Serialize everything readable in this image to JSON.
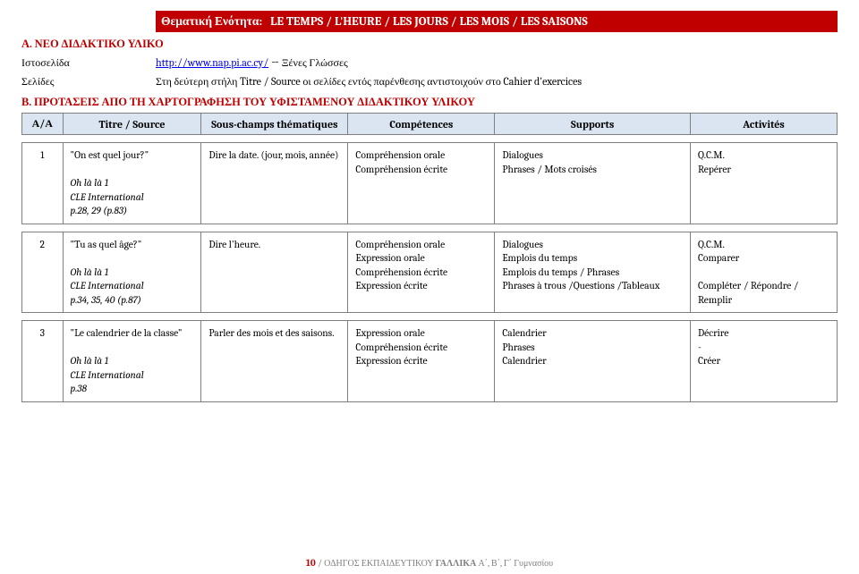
{
  "header": {
    "thematic_label": "Θεματική Ενότητα:",
    "thematic_value": "LE TEMPS / L'HEURE / LES JOURS / LES MOIS / LES SAISONS"
  },
  "sectionA": {
    "title": "Α. ΝΕΟ ΔΙΔΑΚΤΙΚΟ ΥΛΙΚΟ",
    "website_label": "Ιστοσελίδα",
    "website_url": "http://www.nap.pi.ac.cy/",
    "website_suffix": " → Ξένες Γλώσσες",
    "pages_label": "Σελίδες",
    "pages_value": "Στη δεύτερη στήλη Titre / Source οι σελίδες εντός παρένθεσης αντιστοιχούν στο Cahier d'exercices"
  },
  "sectionB": {
    "title": "Β. ΠΡΟΤΑΣΕΙΣ ΑΠΟ ΤΗ ΧΑΡΤΟΓΡΑΦΗΣΗ ΤΟΥ ΥΦΙΣΤΑΜΕΝΟΥ ΔΙΔΑΚΤΙΚΟΥ ΥΛΙΚΟΥ"
  },
  "columns": {
    "aa": "Α/Α",
    "titre": "Titre / Source",
    "sous": "Sous-champs thématiques",
    "comp": "Compétences",
    "supp": "Supports",
    "act": "Activités"
  },
  "rows": [
    {
      "n": "1",
      "title": "On est quel jour?",
      "src1": "Oh là là 1",
      "src2": "CLE International",
      "src3": "p.28, 29 (p.83)",
      "sous": "Dire la date. (jour, mois, année)",
      "comp": "Compréhension orale\nCompréhension écrite",
      "supp": "Dialogues\nPhrases / Mots croisés",
      "act": "Q.C.M.\nRepérer"
    },
    {
      "n": "2",
      "title": "Tu as quel âge?",
      "src1": "Oh là là 1",
      "src2": "CLE International",
      "src3": "p.34, 35, 40 (p.87)",
      "sous": "Dire l'heure.",
      "comp": "Compréhension orale\nExpression orale\nCompréhension écrite\nExpression écrite",
      "supp": "Dialogues\nEmplois du temps\nEmplois du temps / Phrases\n Phrases à trous /Questions /Tableaux",
      "act": "Q.C.M.\nComparer\n\nCompléter / Répondre / Remplir"
    },
    {
      "n": "3",
      "title": "Le calendrier de la classe",
      "src1": "Oh là là 1",
      "src2": "CLE International",
      "src3": "p.38",
      "sous": "Parler des mois et des saisons.",
      "comp": "Expression orale\nCompréhension écrite\nExpression écrite",
      "supp": "Calendrier\nPhrases\nCalendrier",
      "act": "Décrire\n  -\nCréer"
    }
  ],
  "footer": {
    "page": "10",
    "sep": " / ",
    "text": "ΟΔΗΓΟΣ ΕΚΠΑΙΔΕΥΤΙΚΟΥ ",
    "bold": "ΓΑΛΛΙΚΑ",
    "rest": "  Α΄, Β΄, Γ΄ Γυμνασίου"
  },
  "colors": {
    "header_bg": "#c00000",
    "header_fg": "#ffffff",
    "table_header_bg": "#dbe5f1",
    "border": "#7f7f7f",
    "link": "#0000ee"
  }
}
